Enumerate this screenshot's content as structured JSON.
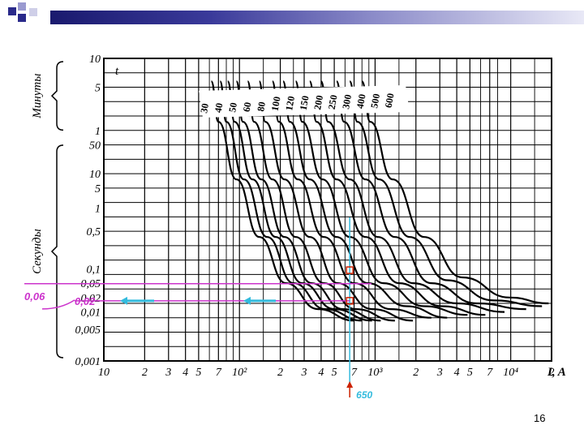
{
  "slide": {
    "page_number": "16",
    "colors": {
      "header_dark": "#1a1a6e",
      "square_blue": "#2a2a8a",
      "annotation_magenta": "#cc33cc",
      "annotation_cyan": "#33bbdd",
      "marker_red": "#cc2200"
    }
  },
  "chart_data": {
    "type": "line",
    "title": "",
    "xlabel": "I, A",
    "x_scale": "log",
    "xlim": [
      10,
      20000
    ],
    "x_ticks": [
      {
        "v": 10,
        "t": "10"
      },
      {
        "v": 20,
        "t": "2"
      },
      {
        "v": 30,
        "t": "3"
      },
      {
        "v": 40,
        "t": "4"
      },
      {
        "v": 50,
        "t": "5"
      },
      {
        "v": 70,
        "t": "7"
      },
      {
        "v": 100,
        "t": "10²"
      },
      {
        "v": 200,
        "t": "2"
      },
      {
        "v": 300,
        "t": "3"
      },
      {
        "v": 400,
        "t": "4"
      },
      {
        "v": 500,
        "t": "5"
      },
      {
        "v": 700,
        "t": "7"
      },
      {
        "v": 1000,
        "t": "10³"
      },
      {
        "v": 2000,
        "t": "2"
      },
      {
        "v": 3000,
        "t": "3"
      },
      {
        "v": 4000,
        "t": "4"
      },
      {
        "v": 5000,
        "t": "5"
      },
      {
        "v": 7000,
        "t": "7"
      },
      {
        "v": 10000,
        "t": "10⁴"
      },
      {
        "v": 20000,
        "t": "2"
      }
    ],
    "y_axis_label": "t",
    "y_ticks": [
      {
        "row": 0,
        "t": "10"
      },
      {
        "row": 1,
        "t": "5"
      },
      {
        "row": 2.5,
        "t": "1"
      },
      {
        "row": 3,
        "t": "50"
      },
      {
        "row": 4,
        "t": "10"
      },
      {
        "row": 4.5,
        "t": "5"
      },
      {
        "row": 5.2,
        "t": "1"
      },
      {
        "row": 6,
        "t": "0,5"
      },
      {
        "row": 7.3,
        "t": "0,1"
      },
      {
        "row": 7.8,
        "t": "0,05"
      },
      {
        "row": 8.3,
        "t": "0,02"
      },
      {
        "row": 8.8,
        "t": "0,01"
      },
      {
        "row": 9.4,
        "t": "0,005"
      },
      {
        "row": 10.5,
        "t": "0,001"
      }
    ],
    "y_groups": [
      {
        "label": "Минуты",
        "from_row": 0,
        "to_row": 2.6
      },
      {
        "label": "Секунды",
        "from_row": 2.9,
        "to_row": 10.5
      }
    ],
    "series_labels": [
      "30",
      "40",
      "50",
      "60",
      "80",
      "100",
      "120",
      "150",
      "200",
      "250",
      "300",
      "400",
      "500",
      "600"
    ],
    "series": [
      {
        "name": "30",
        "points": [
          [
            62,
            0.8
          ],
          [
            70,
            2.2
          ],
          [
            95,
            4.2
          ],
          [
            140,
            6.2
          ],
          [
            220,
            7.8
          ],
          [
            380,
            8.7
          ],
          [
            700,
            9.1
          ]
        ]
      },
      {
        "name": "40",
        "points": [
          [
            72,
            0.8
          ],
          [
            80,
            2.2
          ],
          [
            108,
            4.2
          ],
          [
            160,
            6.2
          ],
          [
            250,
            7.8
          ],
          [
            430,
            8.7
          ],
          [
            800,
            9.1
          ]
        ]
      },
      {
        "name": "50",
        "points": [
          [
            82,
            0.8
          ],
          [
            92,
            2.2
          ],
          [
            125,
            4.2
          ],
          [
            185,
            6.2
          ],
          [
            290,
            7.8
          ],
          [
            500,
            8.7
          ],
          [
            950,
            9.1
          ]
        ]
      },
      {
        "name": "60",
        "points": [
          [
            95,
            0.8
          ],
          [
            106,
            2.2
          ],
          [
            145,
            4.2
          ],
          [
            215,
            6.2
          ],
          [
            340,
            7.8
          ],
          [
            580,
            8.7
          ],
          [
            1100,
            9.1
          ]
        ]
      },
      {
        "name": "80",
        "points": [
          [
            115,
            0.8
          ],
          [
            128,
            2.2
          ],
          [
            175,
            4.2
          ],
          [
            260,
            6.2
          ],
          [
            420,
            7.8
          ],
          [
            720,
            8.7
          ],
          [
            1400,
            9.1
          ]
        ]
      },
      {
        "name": "100",
        "points": [
          [
            140,
            0.8
          ],
          [
            155,
            2.2
          ],
          [
            215,
            4.2
          ],
          [
            330,
            6.2
          ],
          [
            530,
            7.8
          ],
          [
            950,
            8.7
          ],
          [
            1900,
            9.1
          ]
        ]
      },
      {
        "name": "120",
        "points": [
          [
            175,
            0.8
          ],
          [
            195,
            2.2
          ],
          [
            270,
            4.2
          ],
          [
            420,
            6.2
          ],
          [
            700,
            7.8
          ],
          [
            1300,
            8.7
          ],
          [
            2600,
            9.0
          ]
        ]
      },
      {
        "name": "150",
        "points": [
          [
            210,
            0.8
          ],
          [
            235,
            2.2
          ],
          [
            330,
            4.2
          ],
          [
            520,
            6.2
          ],
          [
            880,
            7.8
          ],
          [
            1700,
            8.6
          ],
          [
            3400,
            9.0
          ]
        ]
      },
      {
        "name": "200",
        "points": [
          [
            260,
            0.8
          ],
          [
            290,
            2.2
          ],
          [
            410,
            4.2
          ],
          [
            650,
            6.2
          ],
          [
            1150,
            7.8
          ],
          [
            2300,
            8.6
          ],
          [
            4800,
            8.9
          ]
        ]
      },
      {
        "name": "250",
        "points": [
          [
            330,
            0.8
          ],
          [
            370,
            2.2
          ],
          [
            520,
            4.2
          ],
          [
            850,
            6.2
          ],
          [
            1500,
            7.8
          ],
          [
            3100,
            8.6
          ],
          [
            6500,
            8.9
          ]
        ]
      },
      {
        "name": "300",
        "points": [
          [
            400,
            0.8
          ],
          [
            450,
            2.2
          ],
          [
            650,
            4.2
          ],
          [
            1050,
            6.2
          ],
          [
            1900,
            7.8
          ],
          [
            4000,
            8.5
          ],
          [
            9000,
            8.8
          ]
        ]
      },
      {
        "name": "400",
        "points": [
          [
            520,
            0.8
          ],
          [
            590,
            2.2
          ],
          [
            850,
            4.2
          ],
          [
            1400,
            6.2
          ],
          [
            2600,
            7.8
          ],
          [
            5600,
            8.5
          ],
          [
            13000,
            8.7
          ]
        ]
      },
      {
        "name": "500",
        "points": [
          [
            650,
            0.8
          ],
          [
            740,
            2.2
          ],
          [
            1070,
            4.2
          ],
          [
            1800,
            6.2
          ],
          [
            3400,
            7.7
          ],
          [
            7500,
            8.4
          ],
          [
            17000,
            8.6
          ]
        ]
      },
      {
        "name": "600",
        "points": [
          [
            800,
            0.8
          ],
          [
            920,
            2.2
          ],
          [
            1350,
            4.2
          ],
          [
            2300,
            6.2
          ],
          [
            4400,
            7.6
          ],
          [
            9800,
            8.3
          ],
          [
            19000,
            8.5
          ]
        ]
      }
    ],
    "annotations": {
      "current_label": "650",
      "current_value": 650,
      "time_labels": [
        {
          "text": "0,06",
          "row": 7.65
        },
        {
          "text": "0,02",
          "row": 8.3
        }
      ]
    }
  }
}
